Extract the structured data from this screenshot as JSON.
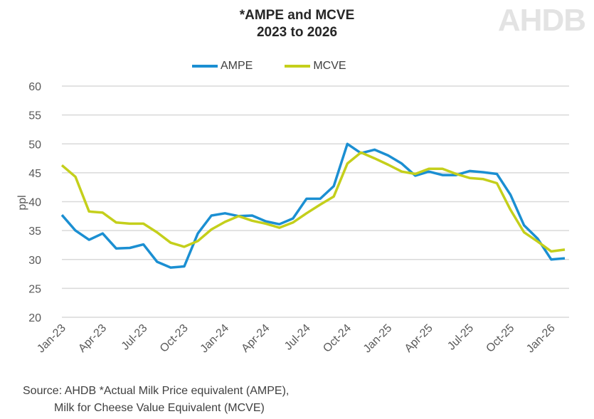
{
  "logo": "AHDB",
  "chart_data": {
    "type": "line",
    "title": "*AMPE and MCVE",
    "subtitle": "2023 to 2026",
    "ylabel": "ppl",
    "xlabel": "",
    "ylim": [
      20,
      60
    ],
    "yticks": [
      20,
      25,
      30,
      35,
      40,
      45,
      50,
      55,
      60
    ],
    "grid": true,
    "legend": "top",
    "categories": [
      "Jan-23",
      "Feb-23",
      "Mar-23",
      "Apr-23",
      "May-23",
      "Jun-23",
      "Jul-23",
      "Aug-23",
      "Sep-23",
      "Oct-23",
      "Nov-23",
      "Dec-23",
      "Jan-24",
      "Feb-24",
      "Mar-24",
      "Apr-24",
      "May-24",
      "Jun-24",
      "Jul-24",
      "Aug-24",
      "Sep-24",
      "Oct-24",
      "Nov-24",
      "Dec-24",
      "Jan-25",
      "Feb-25",
      "Mar-25",
      "Apr-25",
      "May-25",
      "Jun-25",
      "Jul-25",
      "Aug-25",
      "Sep-25",
      "Oct-25",
      "Nov-25",
      "Dec-25",
      "Jan-26",
      "Feb-26"
    ],
    "xtick_labels": [
      "Jan-23",
      "Apr-23",
      "Jul-23",
      "Oct-23",
      "Jan-24",
      "Apr-24",
      "Jul-24",
      "Oct-24",
      "Jan-25",
      "Apr-25",
      "Jul-25",
      "Oct-25",
      "Jan-26"
    ],
    "series": [
      {
        "name": "AMPE",
        "color": "#1b8fd2",
        "values": [
          37.7,
          35.0,
          33.4,
          34.5,
          31.9,
          32.0,
          32.6,
          29.6,
          28.6,
          28.8,
          34.5,
          37.6,
          38.0,
          37.5,
          37.6,
          36.6,
          36.1,
          37.1,
          40.5,
          40.5,
          42.7,
          50.0,
          48.4,
          49.0,
          48.0,
          46.6,
          44.5,
          45.2,
          44.6,
          44.6,
          45.3,
          45.1,
          44.8,
          41.2,
          35.9,
          33.6,
          30.0,
          30.2
        ]
      },
      {
        "name": "MCVE",
        "color": "#c4cf1b",
        "values": [
          46.3,
          44.3,
          38.3,
          38.1,
          36.4,
          36.2,
          36.2,
          34.7,
          32.9,
          32.2,
          33.2,
          35.2,
          36.5,
          37.5,
          36.7,
          36.2,
          35.5,
          36.4,
          38.0,
          39.5,
          40.9,
          46.6,
          48.5,
          47.5,
          46.4,
          45.2,
          44.8,
          45.7,
          45.7,
          44.8,
          44.1,
          43.9,
          43.2,
          38.6,
          34.7,
          33.1,
          31.4,
          31.7
        ]
      }
    ]
  },
  "source": {
    "line1": "Source: AHDB  *Actual Milk Price equivalent (AMPE),",
    "line2": "Milk for Cheese Value Equivalent (MCVE)"
  }
}
